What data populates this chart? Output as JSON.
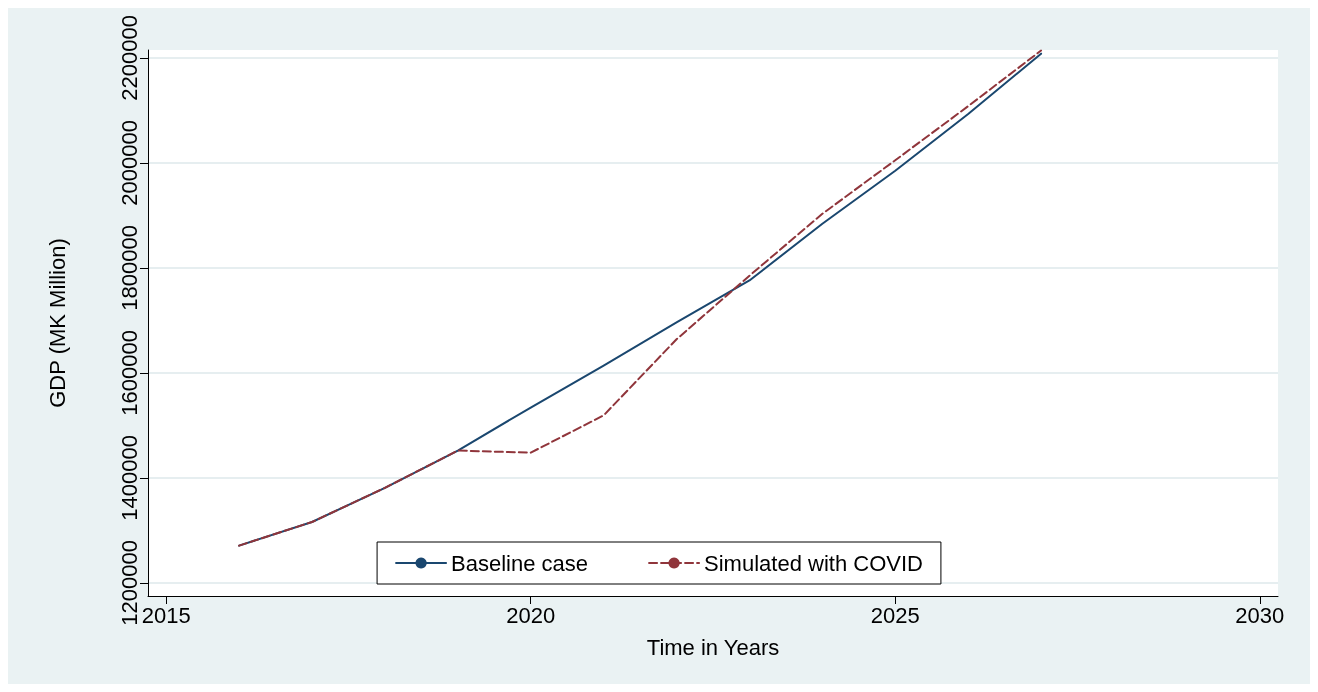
{
  "chart_data": {
    "type": "line",
    "xlabel": "Time in Years",
    "ylabel": "GDP (MK Million)",
    "x": [
      2016,
      2017,
      2018,
      2019,
      2020,
      2021,
      2022,
      2023,
      2024,
      2025,
      2026,
      2027
    ],
    "series": [
      {
        "name": "Baseline case",
        "color": "#1a476f",
        "line_style": "solid",
        "values": [
          1271000,
          1316000,
          1381000,
          1452000,
          1534000,
          1614000,
          1696000,
          1776000,
          1884000,
          1985000,
          2093000,
          2208000
        ]
      },
      {
        "name": "Simulated with COVID",
        "color": "#90353b",
        "line_style": "dashed",
        "values": [
          1271000,
          1316000,
          1381000,
          1452000,
          1448000,
          1519000,
          1664000,
          1785000,
          1903000,
          2005000,
          2108000,
          2214000
        ]
      }
    ],
    "xlim": [
      2014.75,
      2030.25
    ],
    "xticks": [
      2015,
      2020,
      2025,
      2030
    ],
    "ylim": [
      1175000,
      2215000
    ],
    "yticks": [
      1200000,
      1400000,
      1600000,
      1800000,
      2000000,
      2200000
    ],
    "grid": "y",
    "legend": "bottom",
    "marker": "none"
  }
}
